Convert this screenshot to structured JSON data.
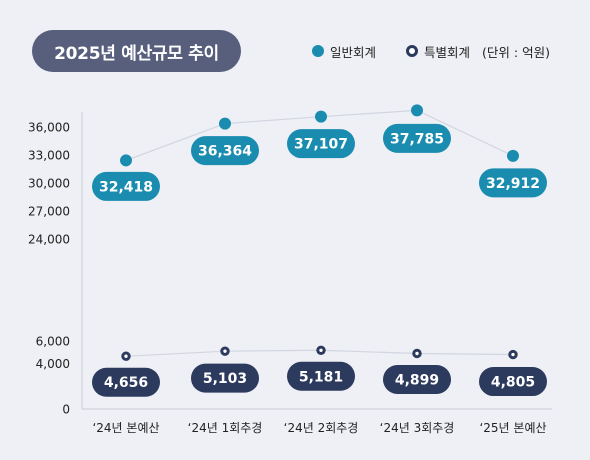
{
  "title": "2025년 예산규모 추이",
  "legend": {
    "general": "일반회계",
    "special": "특별회계",
    "unit": "(단위 : 억원)"
  },
  "colors": {
    "general": "#1a8cb0",
    "special": "#2c3a5e",
    "title_bg": "#575f7d",
    "background": "#eef0f5"
  },
  "chart_data": {
    "type": "line",
    "categories": [
      "‘24년 본예산",
      "‘24년 1회추경",
      "‘24년 2회추경",
      "‘24년 3회추경",
      "‘25년 본예산"
    ],
    "series": [
      {
        "name": "일반회계",
        "values": [
          32418,
          36364,
          37107,
          37785,
          32912
        ],
        "labels": [
          "32,418",
          "36,364",
          "37,107",
          "37,785",
          "32,912"
        ]
      },
      {
        "name": "특별회계",
        "values": [
          4656,
          5103,
          5181,
          4899,
          4805
        ],
        "labels": [
          "4,656",
          "5,103",
          "5,181",
          "4,899",
          "4,805"
        ]
      }
    ],
    "yaxis": {
      "broken": true,
      "lower_segment": [
        0,
        6000
      ],
      "upper_segment": [
        24000,
        36000
      ],
      "ticks_lower": [
        "0",
        "4,000",
        "6,000"
      ],
      "ticks_upper": [
        "24,000",
        "27,000",
        "30,000",
        "33,000",
        "36,000"
      ]
    },
    "ylabel": "",
    "xlabel": "",
    "grid": false,
    "legend_position": "top-right"
  }
}
